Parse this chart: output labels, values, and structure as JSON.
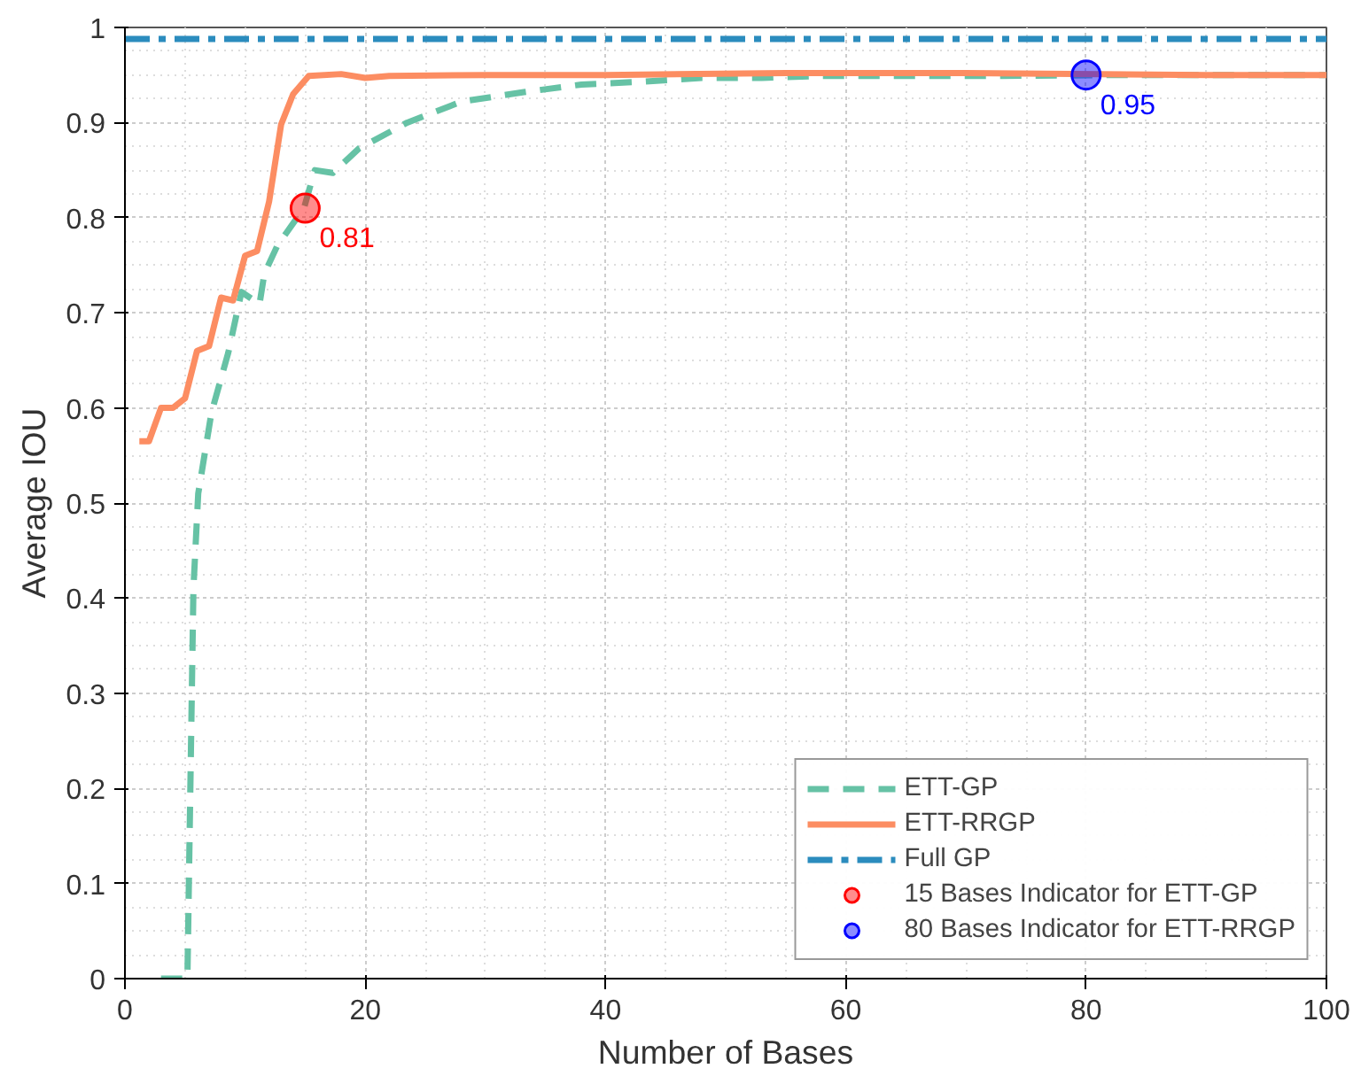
{
  "chart_data": {
    "type": "line",
    "xlabel": "Number of Bases",
    "ylabel": "Average IOU",
    "xlim": [
      0,
      100
    ],
    "ylim": [
      0,
      1
    ],
    "xticks": [
      0,
      20,
      40,
      60,
      80,
      100
    ],
    "yticks": [
      0,
      0.1,
      0.2,
      0.3,
      0.4,
      0.5,
      0.6,
      0.7,
      0.8,
      0.9,
      1
    ],
    "grid": true,
    "legend": "bottom right",
    "series": [
      {
        "name": "ETT-GP",
        "color": "#66c2a5",
        "line_style": "dashed",
        "x": [
          3,
          5.2,
          5.7,
          6.1,
          7.2,
          8.6,
          9.7,
          11.2,
          11.6,
          12.7,
          14.9,
          15.8,
          17.3,
          19.5,
          23.5,
          28,
          33.2,
          38,
          43,
          48,
          53,
          58,
          63,
          73,
          83,
          100
        ],
        "values": [
          0,
          0,
          0.41,
          0.51,
          0.595,
          0.658,
          0.722,
          0.709,
          0.741,
          0.771,
          0.81,
          0.85,
          0.847,
          0.873,
          0.9,
          0.922,
          0.932,
          0.94,
          0.943,
          0.947,
          0.947,
          0.949,
          0.949,
          0.949,
          0.95,
          0.95
        ]
      },
      {
        "name": "ETT-RRGP",
        "color": "#fc8d62",
        "line_style": "solid",
        "x": [
          1.2,
          2,
          3,
          4,
          5,
          6,
          7,
          8,
          9,
          10,
          11,
          12,
          13,
          14,
          15.3,
          18,
          20,
          22,
          30,
          40,
          55,
          70,
          90,
          100
        ],
        "values": [
          0.565,
          0.565,
          0.6,
          0.6,
          0.61,
          0.66,
          0.665,
          0.716,
          0.713,
          0.76,
          0.765,
          0.817,
          0.898,
          0.93,
          0.949,
          0.951,
          0.947,
          0.949,
          0.95,
          0.95,
          0.952,
          0.952,
          0.95,
          0.95
        ]
      },
      {
        "name": "Full GP",
        "color": "#2b8cbe",
        "line_style": "dashed",
        "x": [
          0,
          100
        ],
        "values": [
          0.988,
          0.988
        ]
      },
      {
        "name": "15 Bases Indicator for ETT-GP",
        "type": "scatter",
        "marker": "circle",
        "color": "#ff0000",
        "x": [
          15
        ],
        "values": [
          0.81
        ],
        "value_labels": [
          "0.81"
        ]
      },
      {
        "name": "80 Bases Indicator for ETT-RRGP",
        "type": "scatter",
        "marker": "circle",
        "color": "#0000ff",
        "x": [
          80
        ],
        "values": [
          0.95
        ],
        "value_labels": [
          "0.95"
        ]
      }
    ]
  }
}
